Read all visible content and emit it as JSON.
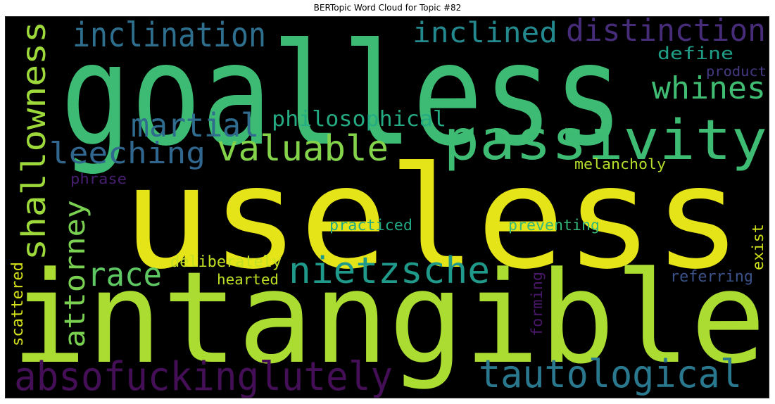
{
  "title": "BERTopic Word Cloud for Topic #82",
  "background": "#000000",
  "words": [
    {
      "text": "goalless",
      "color": "#3dbb74"
    },
    {
      "text": "useless",
      "color": "#e5e419"
    },
    {
      "text": "intangible",
      "color": "#aadc32"
    },
    {
      "text": "passivity",
      "color": "#3fbc73"
    },
    {
      "text": "inclination",
      "color": "#2e6f8e"
    },
    {
      "text": "inclined",
      "color": "#23898e"
    },
    {
      "text": "distinction",
      "color": "#472c7a"
    },
    {
      "text": "whines",
      "color": "#40bd72"
    },
    {
      "text": "define",
      "color": "#1f9f88"
    },
    {
      "text": "product",
      "color": "#443a83"
    },
    {
      "text": "shallowness",
      "color": "#9dd93b"
    },
    {
      "text": "martial",
      "color": "#2f6c8e"
    },
    {
      "text": "philosophical",
      "color": "#25ab82"
    },
    {
      "text": "leeching",
      "color": "#31668e"
    },
    {
      "text": "valuable",
      "color": "#84d44b"
    },
    {
      "text": "melancholy",
      "color": "#b5de2b"
    },
    {
      "text": "phrase",
      "color": "#481f70"
    },
    {
      "text": "attorney",
      "color": "#7ad151"
    },
    {
      "text": "race",
      "color": "#5ec962"
    },
    {
      "text": "nietzsche",
      "color": "#1f9a8a"
    },
    {
      "text": "practiced",
      "color": "#22a884"
    },
    {
      "text": "preventing",
      "color": "#35b779"
    },
    {
      "text": "deliberately",
      "color": "#c2df23"
    },
    {
      "text": "hearted",
      "color": "#bddf26"
    },
    {
      "text": "scattered",
      "color": "#d5e21a"
    },
    {
      "text": "forming",
      "color": "#481769"
    },
    {
      "text": "referring",
      "color": "#3b528b"
    },
    {
      "text": "exist",
      "color": "#d0e11c"
    },
    {
      "text": "absofuckinglutely",
      "color": "#440f56"
    },
    {
      "text": "tautological",
      "color": "#2a788e"
    }
  ]
}
